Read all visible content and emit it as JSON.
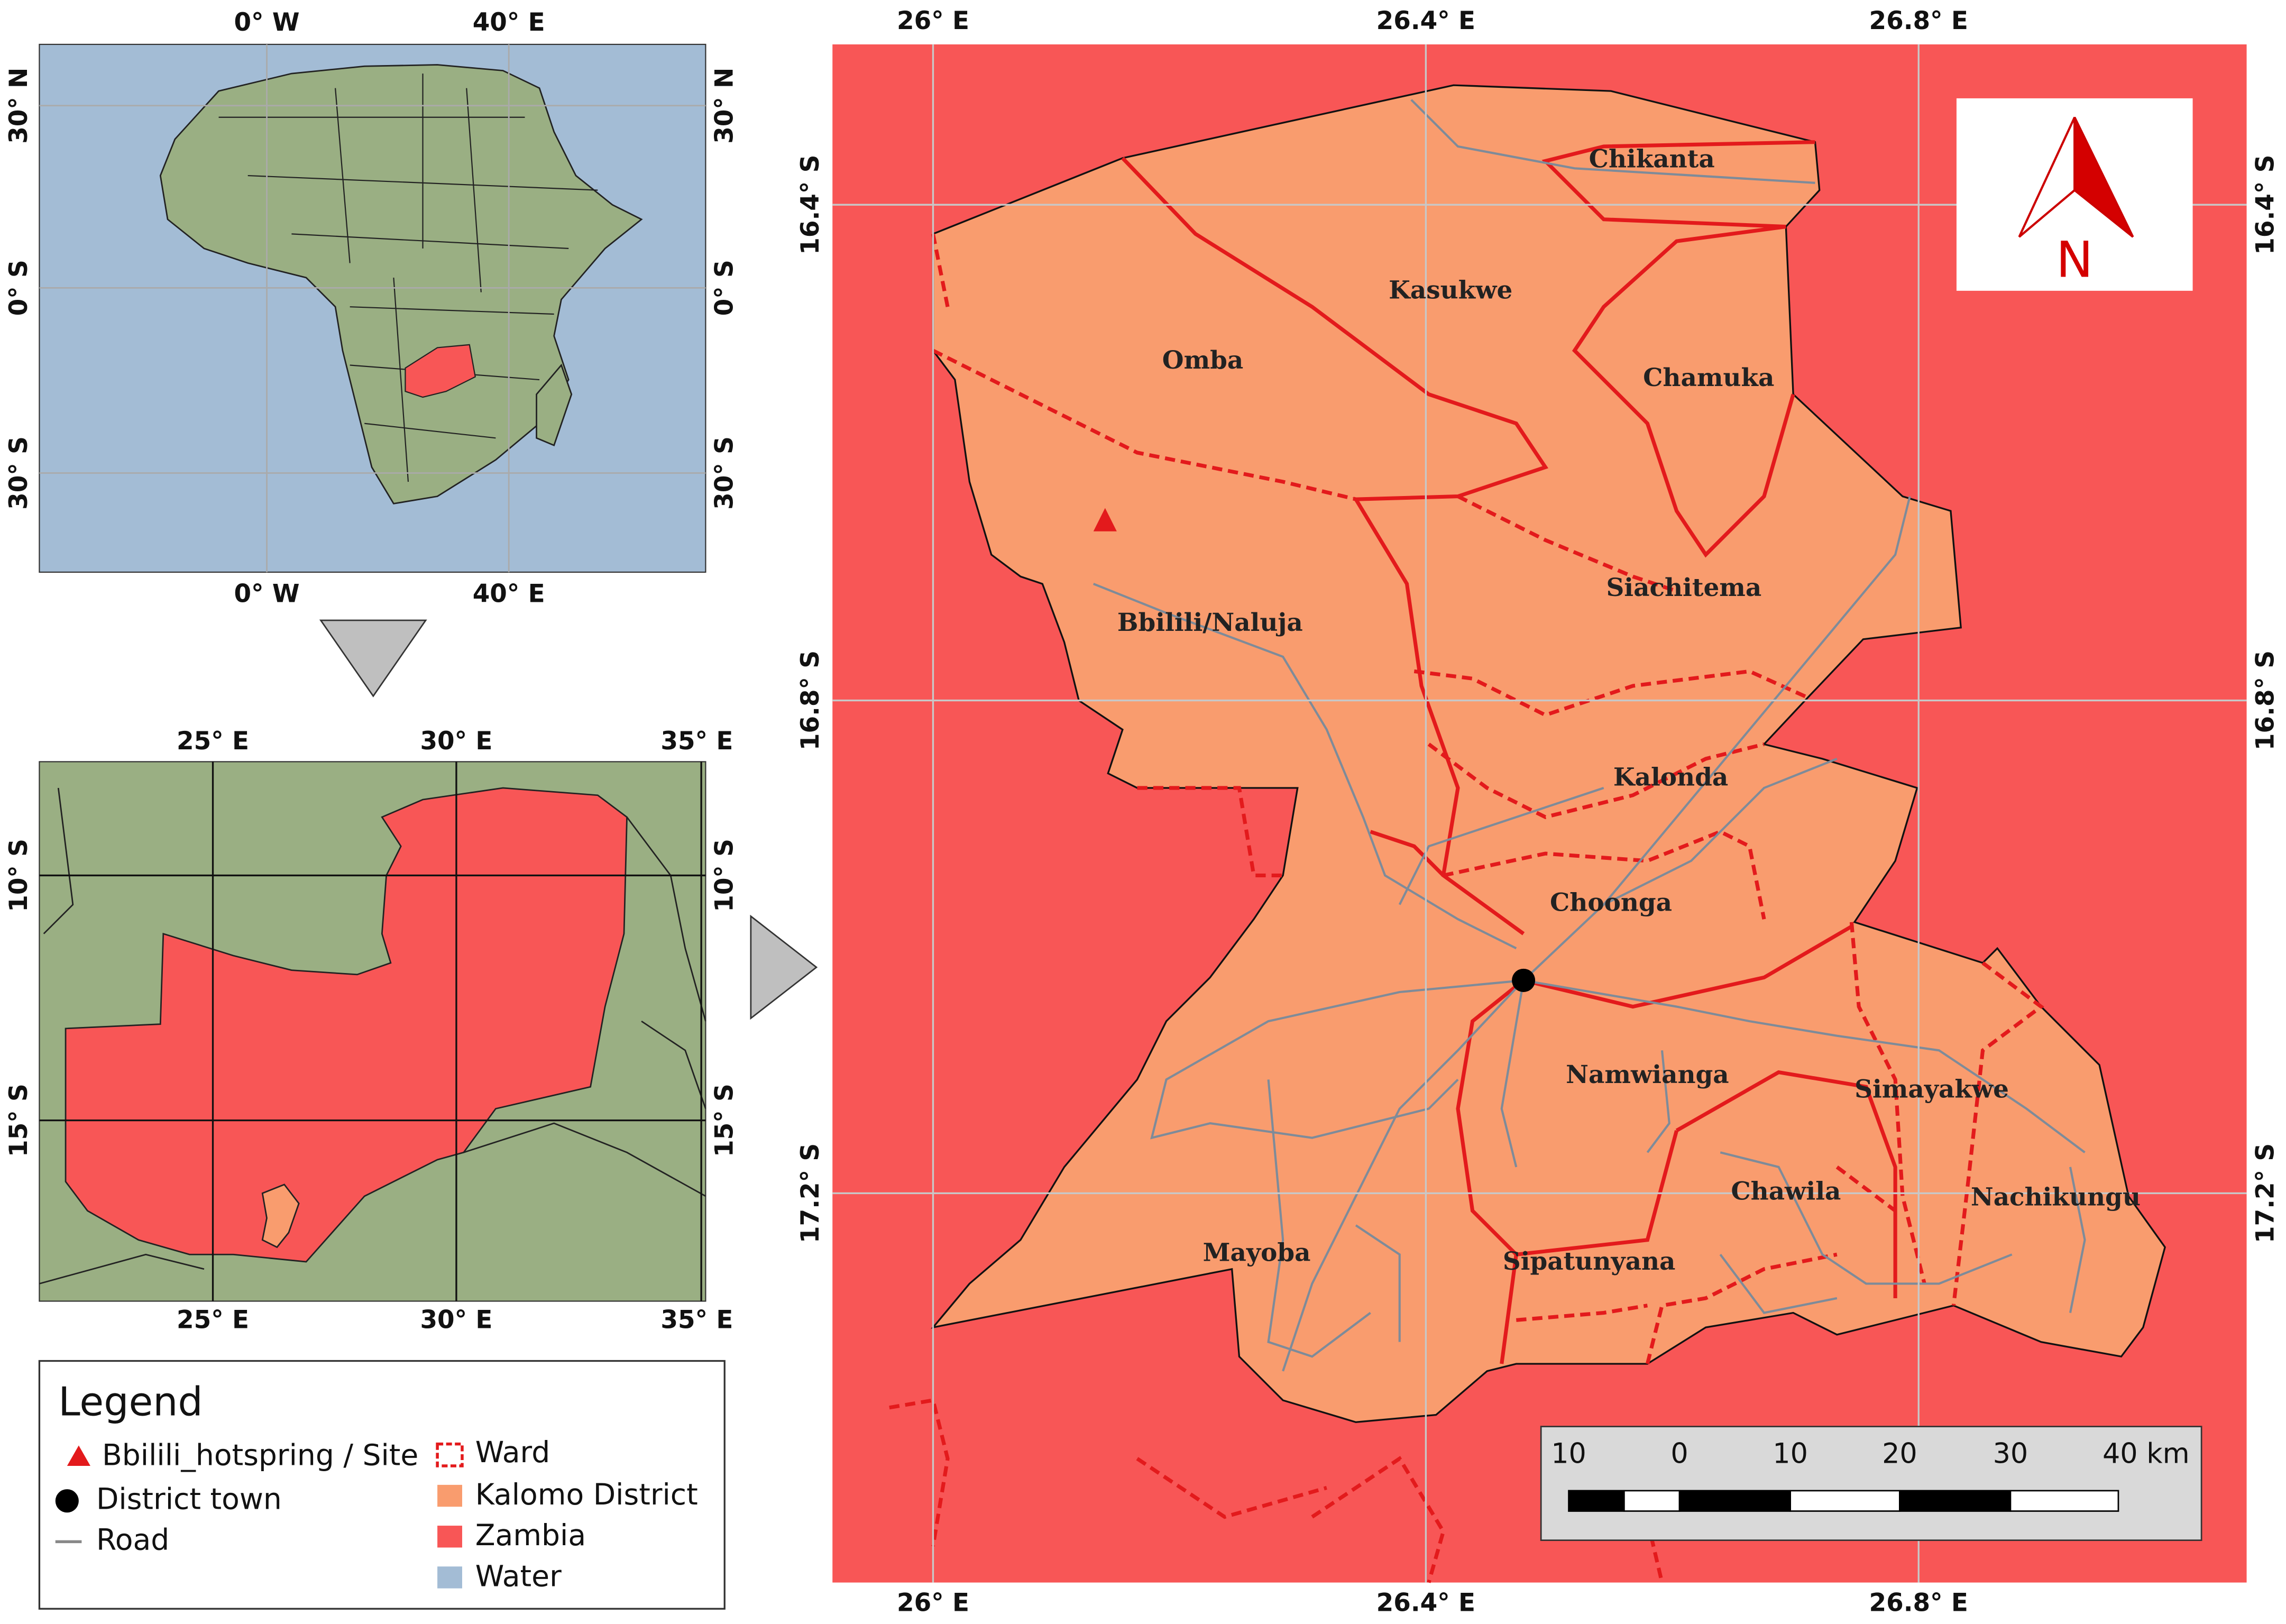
{
  "africa_inset": {
    "top_labels": [
      "0° W",
      "40° E"
    ],
    "bottom_labels": [
      "0° W",
      "40° E"
    ],
    "left_labels": [
      "30° N",
      "0° S",
      "30° S"
    ],
    "right_labels": [
      "30° N",
      "0° S",
      "30° S"
    ]
  },
  "zambia_inset": {
    "top_labels": [
      "25° E",
      "30° E",
      "35° E"
    ],
    "bottom_labels": [
      "25° E",
      "30° E",
      "35° E"
    ],
    "left_labels": [
      "10° S",
      "15° S"
    ],
    "right_labels": [
      "10° S",
      "15° S"
    ]
  },
  "main_map": {
    "top_labels": [
      "26° E",
      "26.4° E",
      "26.8° E"
    ],
    "bottom_labels": [
      "26° E",
      "26.4° E",
      "26.8° E"
    ],
    "left_labels": [
      "16.4° S",
      "16.8° S",
      "17.2° S"
    ],
    "right_labels": [
      "16.4° S",
      "16.8° S",
      "17.2° S"
    ],
    "wards": [
      "Chikanta",
      "Kasukwe",
      "Omba",
      "Chamuka",
      "Siachitema",
      "Bbilili/Naluja",
      "Kalonda",
      "Choonga",
      "Namwianga",
      "Simayakwe",
      "Chawila",
      "Nachikungu",
      "Mayoba",
      "Sipatunyana"
    ]
  },
  "north_arrow": {
    "label": "N"
  },
  "scale_bar": {
    "labels": [
      "10",
      "0",
      "10",
      "20",
      "30",
      "40 km"
    ]
  },
  "legend": {
    "title": "Legend",
    "items": [
      "Bbilili_hotspring / Site",
      "District town",
      "Road",
      "Ward",
      "Kalomo District",
      "Zambia",
      "Water"
    ]
  }
}
